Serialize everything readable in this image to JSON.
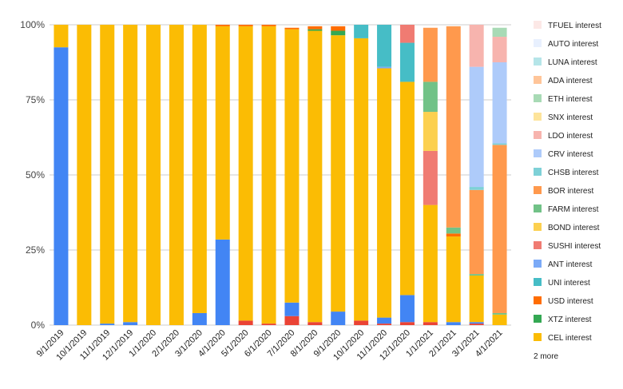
{
  "chart_data": {
    "type": "bar",
    "stacked": true,
    "normalized": true,
    "categories": [
      "9/1/2019",
      "10/1/2019",
      "11/1/2019",
      "12/1/2019",
      "1/1/2020",
      "2/1/2020",
      "3/1/2020",
      "4/1/2020",
      "5/1/2020",
      "6/1/2020",
      "7/1/2020",
      "8/1/2020",
      "9/1/2020",
      "10/1/2020",
      "11/1/2020",
      "12/1/2020",
      "1/1/2021",
      "2/1/2021",
      "3/1/2021",
      "4/1/2021"
    ],
    "y_ticks": [
      "0%",
      "25%",
      "50%",
      "75%",
      "100%"
    ],
    "ylim": [
      0,
      100
    ],
    "grid": true,
    "legend_position": "right",
    "legend_more": "2 more",
    "series": [
      {
        "name": "CEL interest",
        "color": "#fbbc04",
        "values": [
          7.5,
          100,
          99.5,
          99,
          100,
          100,
          96,
          71,
          98,
          99,
          91,
          97,
          92,
          94,
          83,
          71,
          39,
          28.5,
          15.5,
          3.5
        ]
      },
      {
        "name": "XTZ interest",
        "color": "#34a853",
        "values": [
          0,
          0,
          0,
          0,
          0,
          0,
          0,
          0,
          0,
          0,
          0,
          0.5,
          1.5,
          0,
          0,
          0,
          0,
          0,
          0,
          0
        ]
      },
      {
        "name": "USD interest",
        "color": "#ff6d01",
        "values": [
          0,
          0,
          0,
          0,
          0,
          0,
          0,
          0.5,
          0.5,
          0.5,
          0.5,
          1,
          1.5,
          0,
          0,
          0,
          0,
          1,
          0,
          0
        ]
      },
      {
        "name": "UNI interest",
        "color": "#46bdc6",
        "values": [
          0,
          0,
          0,
          0,
          0,
          0,
          0,
          0,
          0,
          0,
          0,
          0,
          0,
          4.5,
          14,
          13,
          0,
          0,
          0,
          0
        ]
      },
      {
        "name": "ANT interest",
        "color": "#7baaf7",
        "values": [
          0,
          0,
          0,
          0,
          0,
          0,
          0,
          0,
          0,
          0,
          0,
          0,
          0,
          0,
          0.5,
          0,
          0,
          0,
          0,
          0
        ]
      },
      {
        "name": "SUSHI interest",
        "color": "#f07b72",
        "values": [
          0,
          0,
          0,
          0,
          0,
          0,
          0,
          0,
          0,
          0,
          0,
          0,
          0,
          0,
          0,
          6,
          18,
          0,
          0,
          0
        ]
      },
      {
        "name": "BOND interest",
        "color": "#fcd04f",
        "values": [
          0,
          0,
          0,
          0,
          0,
          0,
          0,
          0,
          0,
          0,
          0,
          0,
          0,
          0,
          0,
          0,
          13,
          0,
          0,
          0
        ]
      },
      {
        "name": "FARM interest",
        "color": "#71c287",
        "values": [
          0,
          0,
          0,
          0,
          0,
          0,
          0,
          0,
          0,
          0,
          0,
          0,
          0,
          0,
          0,
          0,
          10,
          2,
          0.5,
          0.5
        ]
      },
      {
        "name": "BOR interest",
        "color": "#ff994d",
        "values": [
          0,
          0,
          0,
          0,
          0,
          0,
          0,
          0,
          0,
          0,
          0,
          0,
          0,
          0,
          0,
          0,
          18,
          67,
          28,
          56
        ]
      },
      {
        "name": "CHSB interest",
        "color": "#7ed1d7",
        "values": [
          0,
          0,
          0,
          0,
          0,
          0,
          0,
          0,
          0,
          0,
          0,
          0,
          0,
          0,
          0,
          0,
          0,
          0,
          1,
          0.5
        ]
      },
      {
        "name": "CRV interest",
        "color": "#aecbfa",
        "values": [
          0,
          0,
          0,
          0,
          0,
          0,
          0,
          0,
          0,
          0,
          0,
          0,
          0,
          0,
          0,
          0,
          0,
          0,
          40,
          27
        ]
      },
      {
        "name": "LDO interest",
        "color": "#f7b4ae",
        "values": [
          0,
          0,
          0,
          0,
          0,
          0,
          0,
          0,
          0,
          0,
          0,
          0,
          0,
          0,
          0,
          0,
          0,
          0,
          14,
          8.5
        ]
      },
      {
        "name": "SNX interest",
        "color": "#fde49b",
        "values": [
          0,
          0,
          0,
          0,
          0,
          0,
          0,
          0,
          0,
          0,
          0,
          0,
          0,
          0,
          0,
          0,
          0,
          0,
          0,
          0
        ]
      },
      {
        "name": "ETH interest",
        "color": "#a8dab5",
        "values": [
          0,
          0,
          0,
          0,
          0,
          0,
          0,
          0,
          0,
          0,
          0,
          0,
          0,
          0,
          0,
          0,
          0,
          0,
          0,
          3
        ]
      },
      {
        "name": "ADA interest",
        "color": "#ffc599",
        "values": [
          0,
          0,
          0,
          0,
          0,
          0,
          0,
          0,
          0,
          0,
          0,
          0,
          0,
          0,
          0,
          0,
          0,
          0,
          0,
          0
        ]
      },
      {
        "name": "LUNA interest",
        "color": "#b5e5e8",
        "values": [
          0,
          0,
          0,
          0,
          0,
          0,
          0,
          0,
          0,
          0,
          0,
          0,
          0,
          0,
          0,
          0,
          0,
          0,
          0,
          0
        ]
      },
      {
        "name": "AUTO interest",
        "color": "#e8f0fe",
        "values": [
          0,
          0,
          0,
          0,
          0,
          0,
          0,
          0,
          0,
          0,
          0,
          0,
          0,
          0,
          0,
          0,
          0,
          0,
          0,
          0
        ]
      },
      {
        "name": "TFUEL interest",
        "color": "#fce8e6",
        "values": [
          0,
          0,
          0,
          0,
          0,
          0,
          0,
          0,
          0,
          0,
          0,
          0,
          0,
          0,
          0,
          0,
          0,
          0,
          0,
          0
        ]
      }
    ],
    "hidden_series": [
      {
        "color": "#4285f4",
        "values": [
          92.5,
          0,
          0.5,
          1,
          0,
          0,
          4,
          28.5,
          0,
          0,
          4.5,
          0,
          4.5,
          0,
          2,
          9,
          0,
          1,
          0.5,
          0
        ]
      },
      {
        "color": "#ea4335",
        "values": [
          0,
          0,
          0,
          0,
          0,
          0,
          0,
          0,
          1.5,
          0.5,
          3,
          1,
          0,
          1.5,
          0.5,
          1,
          1,
          0,
          0.5,
          0
        ]
      }
    ]
  }
}
